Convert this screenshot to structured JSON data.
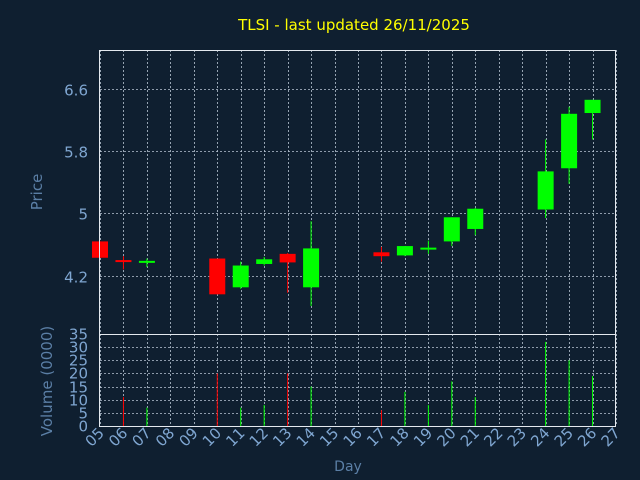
{
  "chart_data": {
    "type": "candlestick",
    "title": "TLSI - last updated 26/11/2025",
    "price_panel": {
      "ylabel": "Price",
      "ylim": [
        3.45,
        7.1
      ],
      "yticks": [
        "4.2",
        "5",
        "5.8",
        "6.6"
      ],
      "ytick_values": [
        4.2,
        5.0,
        5.8,
        6.6
      ]
    },
    "volume_panel": {
      "ylabel": "Volume (0000)",
      "ylim": [
        0,
        35
      ],
      "yticks": [
        "0",
        "5",
        "10",
        "15",
        "20",
        "25",
        "30",
        "35"
      ],
      "ytick_values": [
        0,
        5,
        10,
        15,
        20,
        25,
        30,
        35
      ]
    },
    "xlabel": "Day",
    "xticks": [
      "05",
      "06",
      "07",
      "08",
      "09",
      "10",
      "11",
      "12",
      "13",
      "14",
      "15",
      "16",
      "17",
      "18",
      "19",
      "20",
      "21",
      "22",
      "23",
      "24",
      "25",
      "26",
      "27"
    ],
    "xtick_values": [
      5,
      6,
      7,
      8,
      9,
      10,
      11,
      12,
      13,
      14,
      15,
      16,
      17,
      18,
      19,
      20,
      21,
      22,
      23,
      24,
      25,
      26,
      27
    ],
    "xlim": [
      5,
      27
    ],
    "grid": true,
    "colors": {
      "up": "#00ff00",
      "down": "#ff0000",
      "title": "#ffff00",
      "label": "#7fa6d1",
      "background": "#0f1f30"
    },
    "candles": [
      {
        "day": 5,
        "open": 4.64,
        "high": 4.64,
        "low": 4.43,
        "close": 4.43
      },
      {
        "day": 6,
        "open": 4.4,
        "high": 4.45,
        "low": 4.28,
        "close": 4.38
      },
      {
        "day": 7,
        "open": 4.37,
        "high": 4.42,
        "low": 4.31,
        "close": 4.39
      },
      {
        "day": 10,
        "open": 4.42,
        "high": 4.42,
        "low": 3.96,
        "close": 3.96
      },
      {
        "day": 11,
        "open": 4.05,
        "high": 4.38,
        "low": 4.03,
        "close": 4.33
      },
      {
        "day": 12,
        "open": 4.35,
        "high": 4.44,
        "low": 4.33,
        "close": 4.41
      },
      {
        "day": 13,
        "open": 4.48,
        "high": 4.49,
        "low": 3.98,
        "close": 4.37
      },
      {
        "day": 14,
        "open": 4.05,
        "high": 4.9,
        "low": 3.81,
        "close": 4.55
      },
      {
        "day": 17,
        "open": 4.5,
        "high": 4.57,
        "low": 4.38,
        "close": 4.45
      },
      {
        "day": 18,
        "open": 4.46,
        "high": 4.58,
        "low": 4.45,
        "close": 4.58
      },
      {
        "day": 19,
        "open": 4.54,
        "high": 4.65,
        "low": 4.48,
        "close": 4.56
      },
      {
        "day": 20,
        "open": 4.64,
        "high": 4.95,
        "low": 4.58,
        "close": 4.95
      },
      {
        "day": 21,
        "open": 4.8,
        "high": 5.07,
        "low": 4.72,
        "close": 5.06
      },
      {
        "day": 24,
        "open": 5.05,
        "high": 5.95,
        "low": 4.94,
        "close": 5.54
      },
      {
        "day": 25,
        "open": 5.58,
        "high": 6.37,
        "low": 5.38,
        "close": 6.28
      },
      {
        "day": 26,
        "open": 6.29,
        "high": 6.46,
        "low": 5.95,
        "close": 6.46
      }
    ],
    "volume": [
      {
        "day": 6,
        "value": 11,
        "dir": "down"
      },
      {
        "day": 7,
        "value": 7,
        "dir": "up"
      },
      {
        "day": 10,
        "value": 20,
        "dir": "down"
      },
      {
        "day": 11,
        "value": 7,
        "dir": "up"
      },
      {
        "day": 12,
        "value": 8,
        "dir": "up"
      },
      {
        "day": 13,
        "value": 20,
        "dir": "down"
      },
      {
        "day": 14,
        "value": 15,
        "dir": "up"
      },
      {
        "day": 17,
        "value": 6,
        "dir": "down"
      },
      {
        "day": 18,
        "value": 13,
        "dir": "up"
      },
      {
        "day": 19,
        "value": 8,
        "dir": "up"
      },
      {
        "day": 20,
        "value": 17,
        "dir": "up"
      },
      {
        "day": 21,
        "value": 11,
        "dir": "up"
      },
      {
        "day": 24,
        "value": 32,
        "dir": "up"
      },
      {
        "day": 25,
        "value": 25,
        "dir": "up"
      },
      {
        "day": 26,
        "value": 19,
        "dir": "up"
      }
    ]
  }
}
